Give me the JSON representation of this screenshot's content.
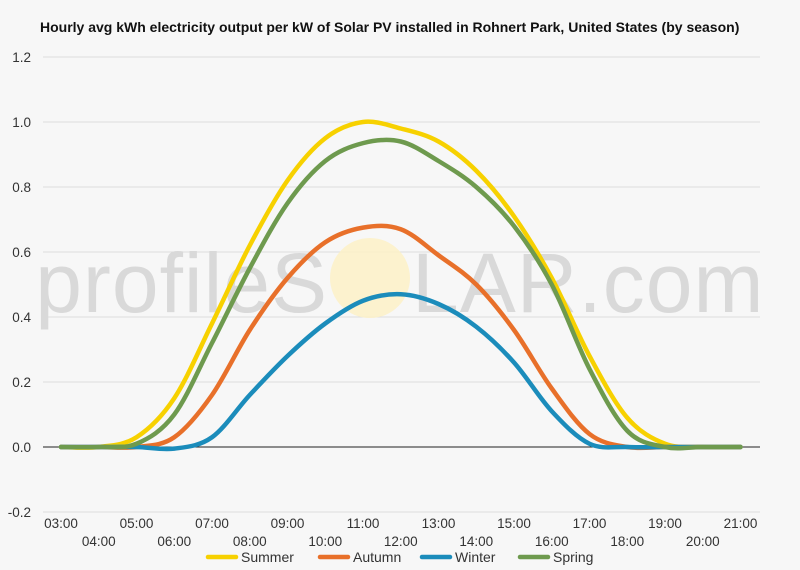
{
  "chart_data": {
    "type": "line",
    "title": "Hourly avg kWh electricity output per kW of Solar PV installed in Rohnert Park, United States (by season)",
    "xlabel": "",
    "ylabel": "",
    "ylim": [
      -0.2,
      1.2
    ],
    "yticks": [
      "-0.2",
      "0.0",
      "0.2",
      "0.4",
      "0.6",
      "0.8",
      "1.0",
      "1.2"
    ],
    "x": [
      "03:00",
      "04:00",
      "05:00",
      "06:00",
      "07:00",
      "08:00",
      "09:00",
      "10:00",
      "11:00",
      "12:00",
      "13:00",
      "14:00",
      "15:00",
      "16:00",
      "17:00",
      "18:00",
      "19:00",
      "20:00",
      "21:00"
    ],
    "grid": true,
    "legend_position": "bottom",
    "series": [
      {
        "name": "Summer",
        "color": "#f7d100",
        "values": [
          0,
          0,
          0.03,
          0.15,
          0.38,
          0.62,
          0.82,
          0.95,
          1.0,
          0.98,
          0.94,
          0.85,
          0.71,
          0.52,
          0.28,
          0.09,
          0.01,
          0,
          0
        ]
      },
      {
        "name": "Autumn",
        "color": "#e8702a",
        "values": [
          0,
          0,
          0,
          0.03,
          0.16,
          0.36,
          0.52,
          0.63,
          0.675,
          0.67,
          0.59,
          0.5,
          0.36,
          0.18,
          0.04,
          0,
          0,
          0,
          0
        ]
      },
      {
        "name": "Winter",
        "color": "#1b8cbb",
        "values": [
          0,
          0,
          0,
          -0.005,
          0.03,
          0.16,
          0.28,
          0.38,
          0.45,
          0.47,
          0.44,
          0.37,
          0.26,
          0.11,
          0.01,
          0,
          0,
          0,
          0
        ]
      },
      {
        "name": "Spring",
        "color": "#6e9a4e",
        "values": [
          0,
          0,
          0.01,
          0.1,
          0.32,
          0.55,
          0.75,
          0.88,
          0.935,
          0.94,
          0.88,
          0.8,
          0.68,
          0.5,
          0.24,
          0.05,
          0,
          0,
          0
        ]
      }
    ]
  },
  "watermark": {
    "left": "profileS",
    "right": "LAR.com"
  }
}
